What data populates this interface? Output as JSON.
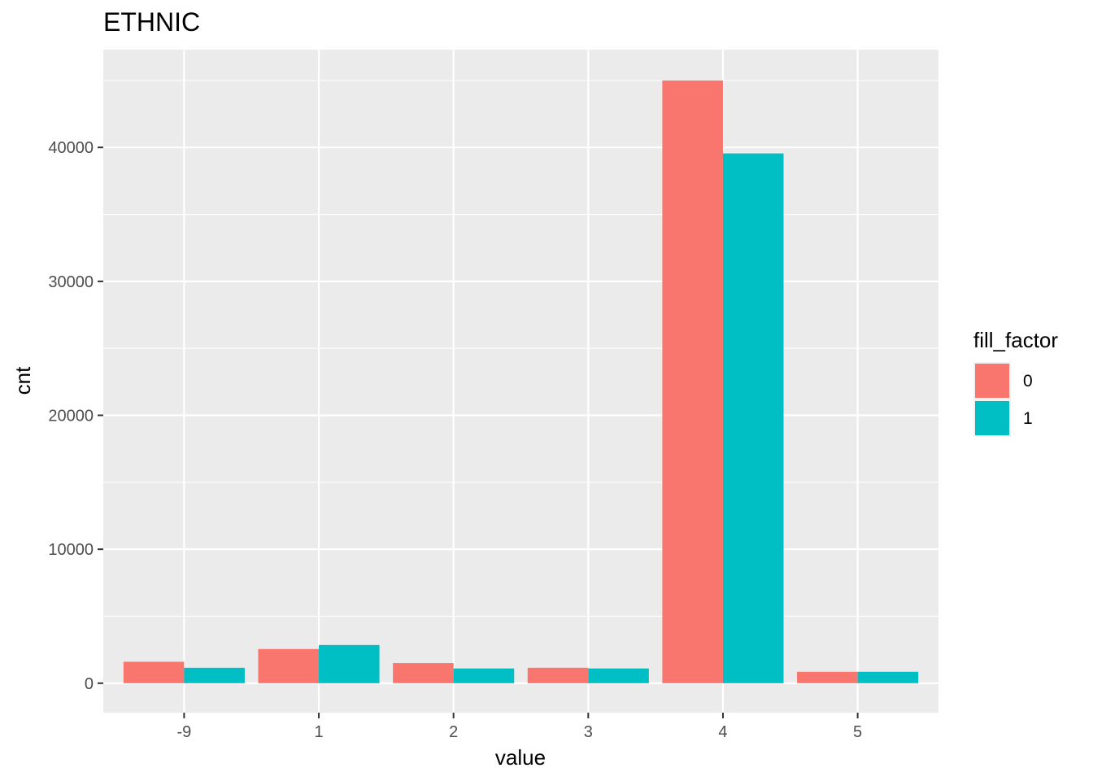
{
  "chart_data": {
    "type": "bar",
    "title": "ETHNIC",
    "xlabel": "value",
    "ylabel": "cnt",
    "categories": [
      "-9",
      "1",
      "2",
      "3",
      "4",
      "5"
    ],
    "series": [
      {
        "name": "0",
        "color": "#F8766D",
        "values": [
          1600,
          2550,
          1500,
          1150,
          45000,
          850
        ]
      },
      {
        "name": "1",
        "color": "#00BFC4",
        "values": [
          1150,
          2850,
          1100,
          1100,
          39550,
          850
        ]
      }
    ],
    "ylim": [
      -2200,
      47300
    ],
    "yticks": [
      0,
      10000,
      20000,
      30000,
      40000
    ],
    "grid": true,
    "panel_background": "#EBEBEB",
    "grid_color": "#FFFFFF",
    "legend": {
      "title": "fill_factor",
      "position": "right"
    }
  }
}
